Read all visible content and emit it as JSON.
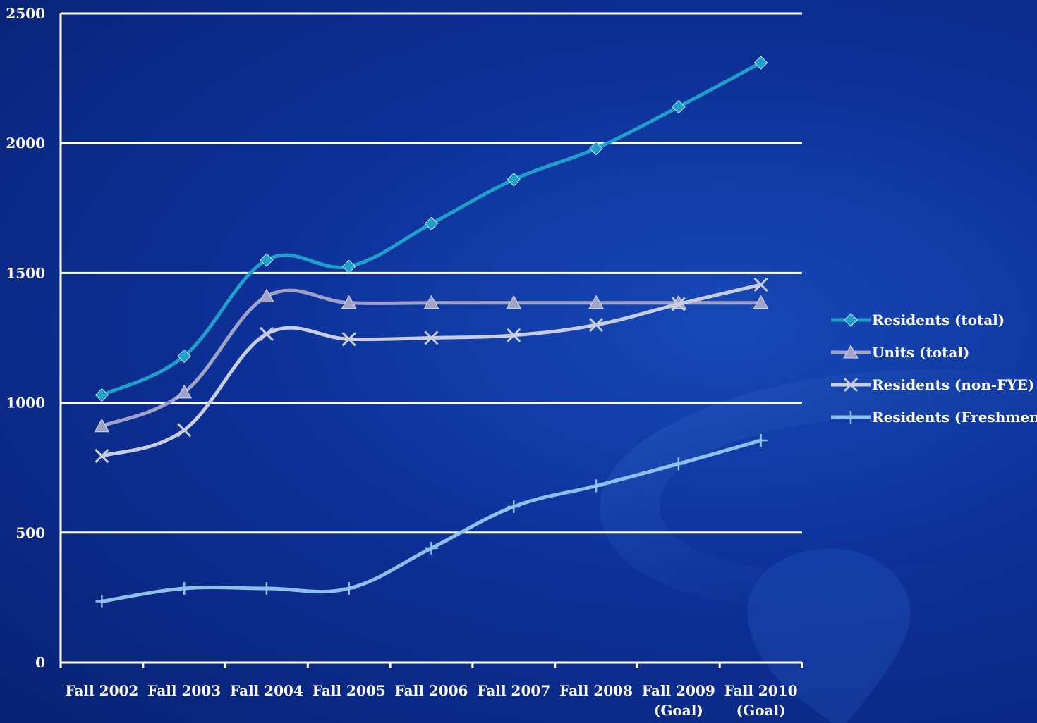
{
  "chart_data": {
    "type": "line",
    "title": "",
    "xlabel": "",
    "ylabel": "",
    "categories": [
      [
        "Fall 2002"
      ],
      [
        "Fall 2003"
      ],
      [
        "Fall 2004"
      ],
      [
        "Fall 2005"
      ],
      [
        "Fall 2006"
      ],
      [
        "Fall 2007"
      ],
      [
        "Fall 2008"
      ],
      [
        "Fall 2009",
        "(Goal)"
      ],
      [
        "Fall 2010",
        "(Goal)"
      ]
    ],
    "ylim": [
      0,
      2500
    ],
    "yticks": [
      "0",
      "500",
      "1000",
      "1500",
      "2000",
      "2500"
    ],
    "grid": true,
    "legend_position": "right",
    "series": [
      {
        "name": "Residents (total)",
        "marker": "diamond",
        "color": "#1f9fc9",
        "values": [
          1030,
          1180,
          1550,
          1525,
          1690,
          1860,
          1980,
          2140,
          2310
        ]
      },
      {
        "name": "Units (total)",
        "marker": "triangle",
        "color": "#9fa3c8",
        "values": [
          910,
          1040,
          1410,
          1385,
          1385,
          1385,
          1385,
          1385,
          1385
        ]
      },
      {
        "name": "Residents (non-FYE)",
        "marker": "x",
        "color": "#c8cde0",
        "values": [
          795,
          895,
          1265,
          1245,
          1250,
          1260,
          1300,
          1380,
          1455
        ]
      },
      {
        "name": "Residents (Freshmen)",
        "marker": "plus",
        "color": "#8ec0ea",
        "values": [
          235,
          285,
          285,
          285,
          440,
          600,
          680,
          765,
          855
        ]
      }
    ]
  }
}
